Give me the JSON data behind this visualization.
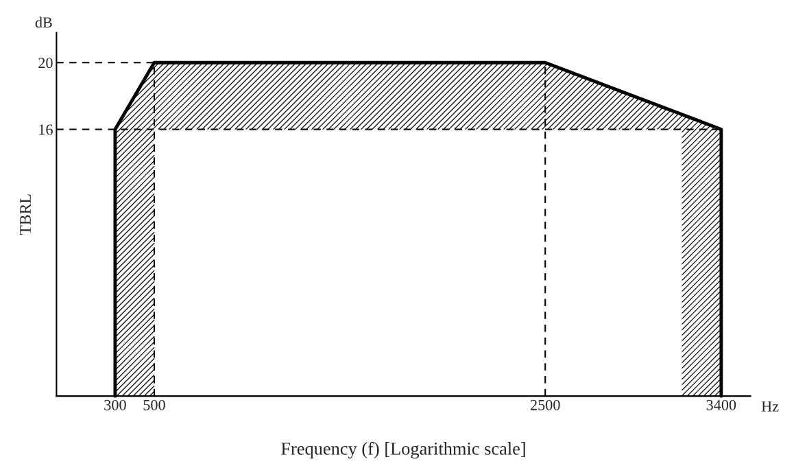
{
  "chart_data": {
    "type": "line",
    "xlabel": "Frequency (f) [Logarithmic scale]",
    "ylabel": "TBRL",
    "annotations": [
      "dB",
      "Hz"
    ],
    "series": [
      {
        "color": "#000000",
        "x": [
          300,
          300,
          500,
          2500,
          3400,
          3400
        ],
        "values": [
          0,
          16,
          20,
          20,
          16,
          0
        ]
      }
    ],
    "ref_lines": [
      {
        "axis": "y",
        "value": 20,
        "line_style": "dashed",
        "color": "#000000"
      },
      {
        "axis": "y",
        "value": 16,
        "line_style": "dashed",
        "color": "#000000"
      },
      {
        "axis": "x",
        "value": 500,
        "line_style": "dashed",
        "color": "#000000"
      },
      {
        "axis": "x",
        "value": 2500,
        "line_style": "dashed",
        "color": "#000000"
      }
    ],
    "xlim": [
      0,
      3550
    ],
    "xticks": [
      300,
      500,
      2500,
      3400
    ],
    "ylim": [
      0,
      21.8
    ],
    "yticks": [
      16,
      20
    ],
    "grid": false
  }
}
